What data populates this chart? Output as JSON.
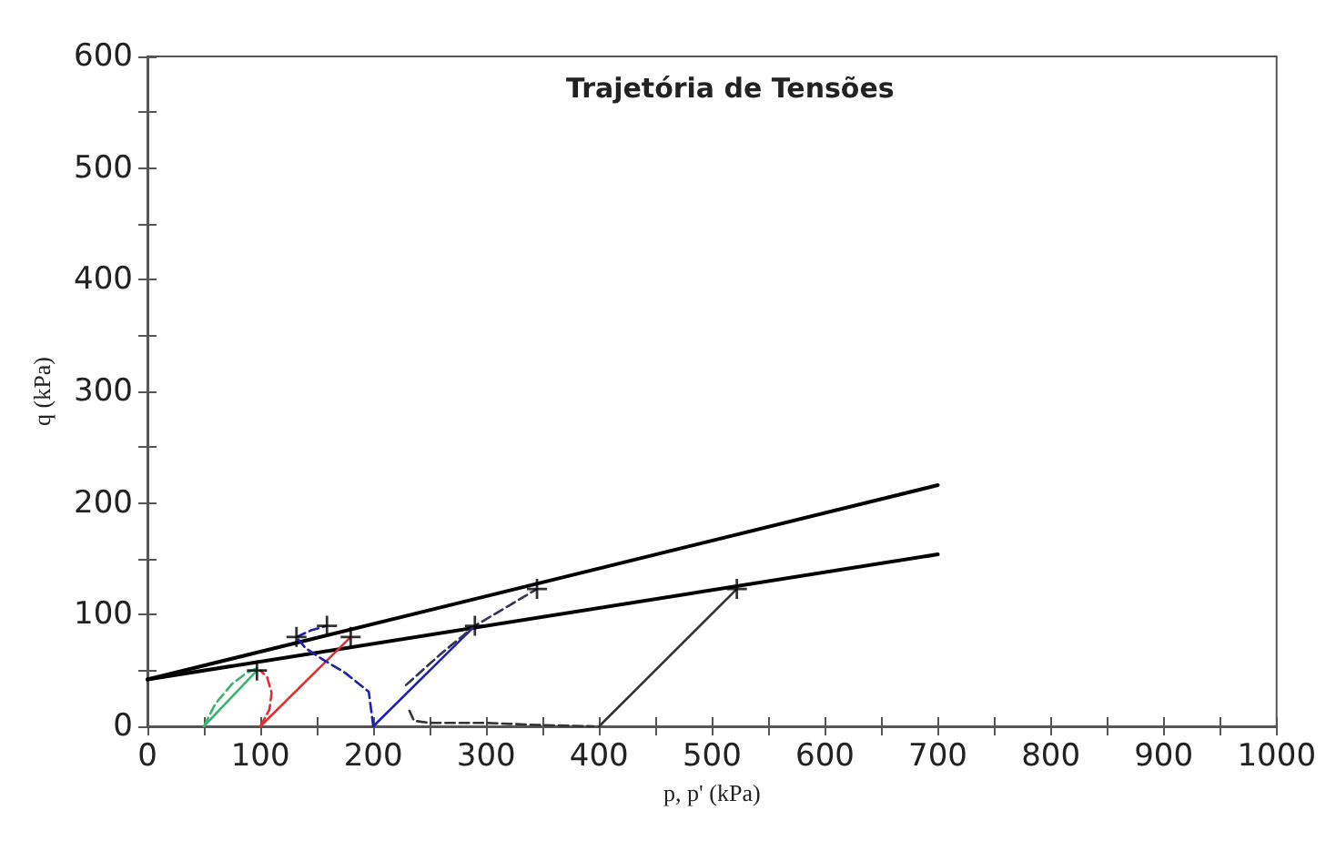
{
  "chart_data": {
    "type": "line",
    "title": "Trajetória de Tensões",
    "xlabel": "p, p' (kPa)",
    "ylabel": "q (kPa)",
    "xlim": [
      0,
      1000
    ],
    "xticks": [
      0,
      100,
      200,
      300,
      400,
      500,
      600,
      700,
      800,
      900,
      1000
    ],
    "ylim": [
      0,
      600
    ],
    "yticks": [
      0,
      100,
      200,
      300,
      400,
      500,
      600
    ],
    "grid": false,
    "marker": "none",
    "line_style": "solid",
    "series": [
      {
        "color": "#000000",
        "x": [
          0,
          700
        ],
        "values": [
          42,
          216
        ]
      },
      {
        "color": "#000000",
        "x": [
          0,
          700
        ],
        "values": [
          42,
          154
        ]
      },
      {
        "color": "#3cb371",
        "x": [
          50,
          97
        ],
        "values": [
          0,
          50
        ]
      },
      {
        "color": "#3cb371",
        "line_style": "dashed",
        "x": [
          50,
          60,
          75,
          88,
          97
        ],
        "values": [
          0,
          20,
          38,
          48,
          52
        ]
      },
      {
        "color": "#e03030",
        "x": [
          100,
          180
        ],
        "values": [
          0,
          80
        ]
      },
      {
        "color": "#e03030",
        "line_style": "dashed",
        "x": [
          100,
          108,
          110,
          106,
          100
        ],
        "values": [
          0,
          15,
          30,
          44,
          50
        ]
      },
      {
        "color": "#2020b0",
        "x": [
          200,
          290
        ],
        "values": [
          0,
          90
        ]
      },
      {
        "color": "#2020b0",
        "line_style": "dashed",
        "x": [
          200,
          196,
          175,
          155,
          140,
          132
        ],
        "values": [
          0,
          31,
          48,
          60,
          70,
          80
        ]
      },
      {
        "color": "#2020b0",
        "line_style": "dashed",
        "x": [
          132,
          145,
          159
        ],
        "values": [
          80,
          86,
          90
        ]
      },
      {
        "color": "#333355",
        "line_style": "dashed",
        "x": [
          229,
          260,
          290,
          320,
          345
        ],
        "values": [
          37,
          65,
          90,
          108,
          123
        ]
      },
      {
        "color": "#333333",
        "line_style": "dashed",
        "x": [
          232,
          236,
          250,
          300,
          350,
          395
        ],
        "values": [
          14,
          5,
          3,
          3,
          1,
          0
        ]
      },
      {
        "color": "#333333",
        "x": [
          400,
          522
        ],
        "values": [
          0,
          123
        ]
      },
      {
        "type": "scatter",
        "marker": "cross",
        "color": "#000000",
        "x": [
          97,
          132,
          159,
          180,
          290,
          345,
          522
        ],
        "values": [
          50,
          80,
          90,
          80,
          90,
          123,
          123
        ]
      }
    ]
  }
}
